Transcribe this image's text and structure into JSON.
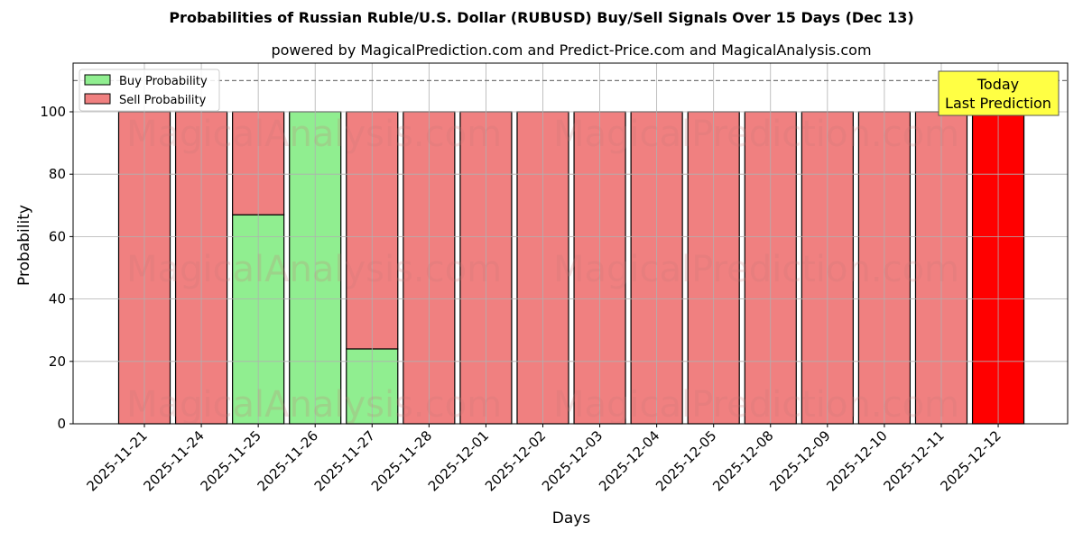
{
  "title": "Probabilities of Russian Ruble/U.S. Dollar (RUBUSD) Buy/Sell Signals Over 15 Days (Dec 13)",
  "subtitle": "powered by MagicalPrediction.com and Predict-Price.com and MagicalAnalysis.com",
  "watermarks": [
    "MagicalAnalysis.com",
    "MagicalPrediction.com"
  ],
  "annotation": {
    "line1": "Today",
    "line2": "Last Prediction"
  },
  "legend": {
    "buy": "Buy Probability",
    "sell": "Sell Probability"
  },
  "colors": {
    "buy": "#90EE90",
    "sell": "#F08080",
    "today": "#FF0000",
    "annotation_bg": "#FFFF44"
  },
  "chart_data": {
    "type": "bar",
    "stacked": true,
    "title": "Probabilities of Russian Ruble/U.S. Dollar (RUBUSD) Buy/Sell Signals Over 15 Days (Dec 13)",
    "subtitle": "powered by MagicalPrediction.com and Predict-Price.com and MagicalAnalysis.com",
    "xlabel": "Days",
    "ylabel": "Probability",
    "ylim": [
      0,
      115
    ],
    "yticks": [
      0,
      20,
      40,
      60,
      80,
      100
    ],
    "reference_line": 110,
    "grid": true,
    "legend_position": "upper left",
    "categories": [
      "2025-11-21",
      "2025-11-24",
      "2025-11-25",
      "2025-11-26",
      "2025-11-27",
      "2025-11-28",
      "2025-12-01",
      "2025-12-02",
      "2025-12-03",
      "2025-12-04",
      "2025-12-05",
      "2025-12-08",
      "2025-12-09",
      "2025-12-10",
      "2025-12-11",
      "2025-12-12"
    ],
    "series": [
      {
        "name": "Buy Probability",
        "values": [
          0,
          0,
          67,
          100,
          24,
          0,
          0,
          0,
          0,
          0,
          0,
          0,
          0,
          0,
          0,
          0
        ]
      },
      {
        "name": "Sell Probability",
        "values": [
          100,
          100,
          33,
          0,
          76,
          100,
          100,
          100,
          100,
          100,
          100,
          100,
          100,
          100,
          100,
          100
        ]
      }
    ]
  }
}
